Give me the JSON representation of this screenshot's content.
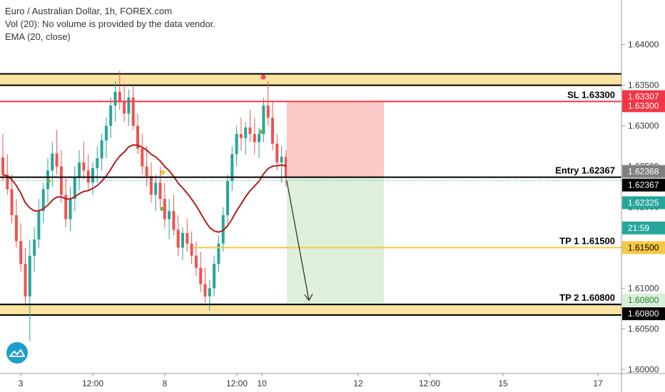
{
  "header": {
    "title": "Euro / Australian Dollar, 1h, FOREX.com",
    "volume_note": "Vol (20): No volume is provided by the data vendor.",
    "ema_note": "EMA (20, close)"
  },
  "chart_data": {
    "type": "candlestick",
    "title": "Euro / Australian Dollar, 1h, FOREX.com",
    "x_ticks": [
      "3",
      "12:00",
      "8",
      "12:00",
      "10",
      "12",
      "12:00",
      "15",
      "17"
    ],
    "y_ticks": [
      1.6,
      1.605,
      1.61,
      1.615,
      1.62,
      1.625,
      1.63,
      1.635,
      1.64
    ],
    "ylim": [
      1.5995,
      1.6455
    ],
    "levels": [
      {
        "name": "SL",
        "label": "SL 1.63300",
        "value": 1.633,
        "color": "#f23645"
      },
      {
        "name": "Entry",
        "label": "Entry 1.62367",
        "value": 1.62367,
        "color": "#000000"
      },
      {
        "name": "TP 1",
        "label": "TP 1 1.61500",
        "value": 1.615,
        "color": "#f5c842"
      },
      {
        "name": "TP 2",
        "label": "TP 2 1.60800",
        "value": 1.608,
        "color": "#000000"
      }
    ],
    "zones": [
      {
        "name": "resistance",
        "from": 1.635,
        "to": 1.6364,
        "color": "#fbe3a0"
      },
      {
        "name": "support",
        "from": 1.6067,
        "to": 1.608,
        "color": "#fbe3a0"
      }
    ],
    "price_badges": [
      {
        "value": "1.63307",
        "price": 1.63307,
        "bg": "#f23645",
        "fg": "#ffffff"
      },
      {
        "value": "1.63300",
        "price": 1.633,
        "bg": "#f23645",
        "fg": "#ffffff"
      },
      {
        "value": "1.62368",
        "price": 1.62368,
        "bg": "#808080",
        "fg": "#ffffff"
      },
      {
        "value": "1.62367",
        "price": 1.62367,
        "bg": "#000000",
        "fg": "#ffffff"
      },
      {
        "value": "1.62325",
        "price": 1.62325,
        "bg": "#26a69a",
        "fg": "#ffffff"
      },
      {
        "value": "21:59",
        "price": 1.6219,
        "bg": "#26a69a",
        "fg": "#ffffff"
      },
      {
        "value": "1.61500",
        "price": 1.615,
        "bg": "#f5c842",
        "fg": "#000000"
      },
      {
        "value": "1.60800",
        "price": 1.608,
        "bg": "#d7f0d9",
        "fg": "#2e7d32"
      },
      {
        "value": "1.60800",
        "price": 1.608,
        "bg": "#000000",
        "fg": "#ffffff"
      }
    ],
    "colors": {
      "up": "#26a69a",
      "down": "#ef5350",
      "ema": "#b71c1c",
      "stop_zone": "#fcc8c8",
      "target_zone": "#dff0da"
    },
    "series": [
      {
        "name": "EMA",
        "type": "line"
      },
      {
        "name": "price",
        "type": "candlestick",
        "candles": [
          [
            1.6261,
            1.629,
            1.6232,
            1.624
          ],
          [
            1.624,
            1.6265,
            1.6215,
            1.6222
          ],
          [
            1.6222,
            1.624,
            1.618,
            1.619
          ],
          [
            1.619,
            1.621,
            1.615,
            1.6158
          ],
          [
            1.6158,
            1.618,
            1.612,
            1.613
          ],
          [
            1.613,
            1.615,
            1.608,
            1.609
          ],
          [
            1.609,
            1.616,
            1.6035,
            1.614
          ],
          [
            1.614,
            1.6175,
            1.612,
            1.616
          ],
          [
            1.616,
            1.621,
            1.615,
            1.6195
          ],
          [
            1.6195,
            1.623,
            1.618,
            1.6222
          ],
          [
            1.6222,
            1.626,
            1.6205,
            1.6245
          ],
          [
            1.6245,
            1.628,
            1.6225,
            1.6266
          ],
          [
            1.6266,
            1.6295,
            1.624,
            1.625
          ],
          [
            1.625,
            1.627,
            1.6205,
            1.6215
          ],
          [
            1.6215,
            1.6235,
            1.6175,
            1.6185
          ],
          [
            1.6185,
            1.6225,
            1.617,
            1.621
          ],
          [
            1.621,
            1.625,
            1.6195,
            1.6236
          ],
          [
            1.6236,
            1.627,
            1.622,
            1.6255
          ],
          [
            1.6255,
            1.628,
            1.6235,
            1.6245
          ],
          [
            1.6245,
            1.6265,
            1.622,
            1.623
          ],
          [
            1.623,
            1.6255,
            1.6215,
            1.6248
          ],
          [
            1.6248,
            1.6275,
            1.623,
            1.626
          ],
          [
            1.626,
            1.629,
            1.6245,
            1.6282
          ],
          [
            1.6282,
            1.631,
            1.626,
            1.63
          ],
          [
            1.63,
            1.6335,
            1.6285,
            1.6325
          ],
          [
            1.6325,
            1.6355,
            1.6305,
            1.6342
          ],
          [
            1.6342,
            1.6368,
            1.632,
            1.633
          ],
          [
            1.633,
            1.6352,
            1.6305,
            1.6315
          ],
          [
            1.6315,
            1.6345,
            1.63,
            1.6335
          ],
          [
            1.6335,
            1.635,
            1.6295,
            1.63
          ],
          [
            1.63,
            1.6315,
            1.6265,
            1.6272
          ],
          [
            1.6272,
            1.629,
            1.624,
            1.625
          ],
          [
            1.625,
            1.6275,
            1.6225,
            1.6238
          ],
          [
            1.6238,
            1.6255,
            1.6205,
            1.6215
          ],
          [
            1.6215,
            1.624,
            1.6195,
            1.623
          ],
          [
            1.623,
            1.625,
            1.62,
            1.621
          ],
          [
            1.621,
            1.623,
            1.6175,
            1.6185
          ],
          [
            1.6185,
            1.621,
            1.616,
            1.6195
          ],
          [
            1.6195,
            1.6215,
            1.6165,
            1.6172
          ],
          [
            1.6172,
            1.619,
            1.614,
            1.615
          ],
          [
            1.615,
            1.6175,
            1.6135,
            1.6168
          ],
          [
            1.6168,
            1.6185,
            1.6145,
            1.6155
          ],
          [
            1.6155,
            1.617,
            1.613,
            1.614
          ],
          [
            1.614,
            1.6158,
            1.6115,
            1.6125
          ],
          [
            1.6125,
            1.6145,
            1.6095,
            1.6105
          ],
          [
            1.6105,
            1.6125,
            1.6082,
            1.609
          ],
          [
            1.609,
            1.611,
            1.6072,
            1.61
          ],
          [
            1.61,
            1.614,
            1.609,
            1.613
          ],
          [
            1.613,
            1.6165,
            1.612,
            1.6155
          ],
          [
            1.6155,
            1.62,
            1.6145,
            1.619
          ],
          [
            1.619,
            1.624,
            1.618,
            1.6232
          ],
          [
            1.6232,
            1.6275,
            1.622,
            1.6265
          ],
          [
            1.6265,
            1.63,
            1.625,
            1.629
          ],
          [
            1.629,
            1.631,
            1.627,
            1.6285
          ],
          [
            1.6285,
            1.6305,
            1.6265,
            1.6298
          ],
          [
            1.6298,
            1.632,
            1.628,
            1.629
          ],
          [
            1.629,
            1.631,
            1.6265,
            1.628
          ],
          [
            1.628,
            1.6298,
            1.626,
            1.629
          ],
          [
            1.629,
            1.6335,
            1.628,
            1.6325
          ],
          [
            1.6325,
            1.6355,
            1.63,
            1.631
          ],
          [
            1.631,
            1.633,
            1.627,
            1.6278
          ],
          [
            1.6278,
            1.629,
            1.6245,
            1.6255
          ],
          [
            1.6255,
            1.6275,
            1.623,
            1.6262
          ],
          [
            1.6262,
            1.627,
            1.6225,
            1.6237
          ]
        ]
      }
    ]
  }
}
